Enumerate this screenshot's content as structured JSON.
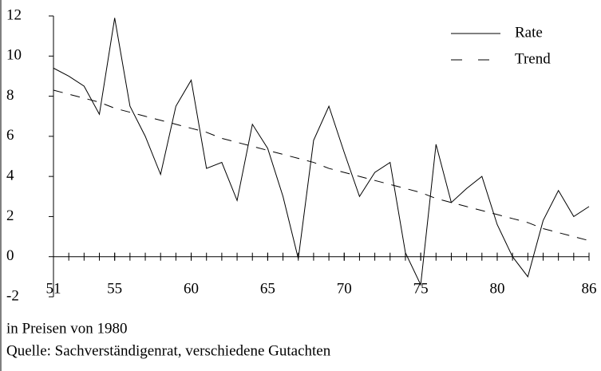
{
  "chart_data": {
    "type": "line",
    "x": [
      51,
      52,
      53,
      54,
      55,
      56,
      57,
      58,
      59,
      60,
      61,
      62,
      63,
      64,
      65,
      66,
      67,
      68,
      69,
      70,
      71,
      72,
      73,
      74,
      75,
      76,
      77,
      78,
      79,
      80,
      81,
      82,
      83,
      84,
      85,
      86
    ],
    "series": [
      {
        "name": "Rate",
        "color": "#000000",
        "dash": false,
        "values": [
          9.4,
          9.0,
          8.5,
          7.1,
          11.9,
          7.5,
          6.0,
          4.1,
          7.5,
          8.8,
          4.4,
          4.7,
          2.8,
          6.6,
          5.4,
          3.0,
          -0.1,
          5.8,
          7.5,
          5.2,
          3.0,
          4.2,
          4.7,
          0.2,
          -1.4,
          5.6,
          2.7,
          3.4,
          4.0,
          1.6,
          0.0,
          -1.0,
          1.8,
          3.3,
          2.0,
          2.5
        ]
      },
      {
        "name": "Trend",
        "color": "#000000",
        "dash": true,
        "values": [
          8.3,
          8.1,
          7.9,
          7.7,
          7.4,
          7.2,
          7.0,
          6.8,
          6.6,
          6.4,
          6.2,
          5.9,
          5.7,
          5.5,
          5.3,
          5.1,
          4.9,
          4.7,
          4.4,
          4.2,
          4.0,
          3.8,
          3.6,
          3.4,
          3.2,
          2.9,
          2.7,
          2.5,
          2.3,
          2.1,
          1.9,
          1.7,
          1.4,
          1.2,
          1.0,
          0.8
        ]
      }
    ],
    "xlim": [
      51,
      86
    ],
    "xticks": [
      51,
      55,
      60,
      65,
      70,
      75,
      80,
      86
    ],
    "ylim": [
      -2,
      12
    ],
    "yticks": [
      -2,
      0,
      2,
      4,
      6,
      8,
      10,
      12
    ],
    "notes": [
      "in Preisen von 1980",
      "Quelle: Sachverständigenrat, verschiedene Gutachten"
    ]
  }
}
